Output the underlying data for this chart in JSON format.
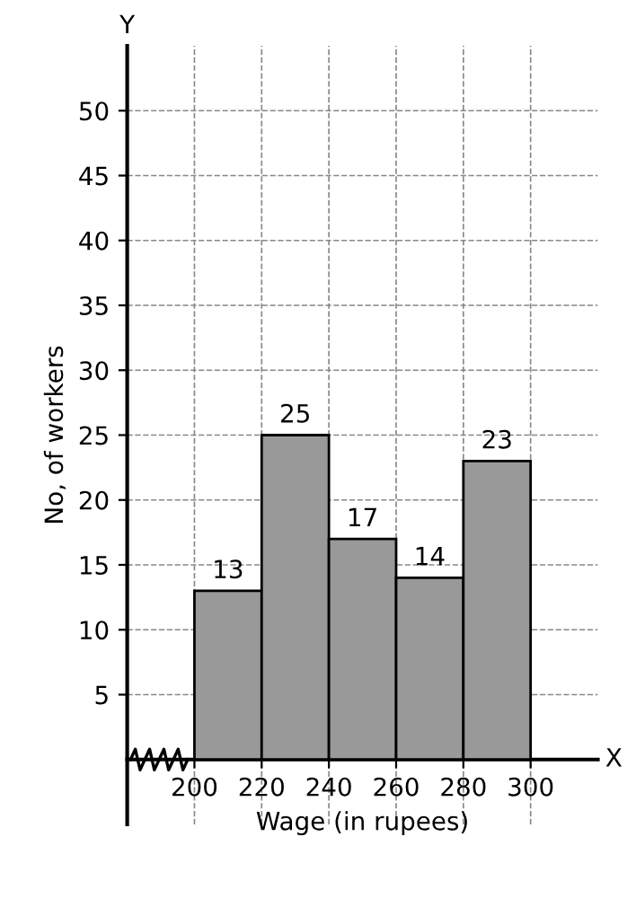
{
  "chart_data": {
    "type": "histogram",
    "xlabel": "Wage (in rupees)",
    "ylabel": "No, of workers",
    "bins": [
      200,
      220,
      240,
      260,
      280,
      300
    ],
    "values": [
      13,
      25,
      17,
      14,
      23
    ],
    "color": "#999999",
    "data_labels": true,
    "xlim": [
      180,
      320
    ],
    "ylim": [
      -5,
      55
    ],
    "xticks": [
      200,
      220,
      240,
      260,
      280,
      300
    ],
    "yticks": [
      5,
      10,
      15,
      20,
      25,
      30,
      35,
      40,
      45,
      50
    ],
    "grid": true,
    "annotations": [
      "X",
      "Y"
    ]
  }
}
